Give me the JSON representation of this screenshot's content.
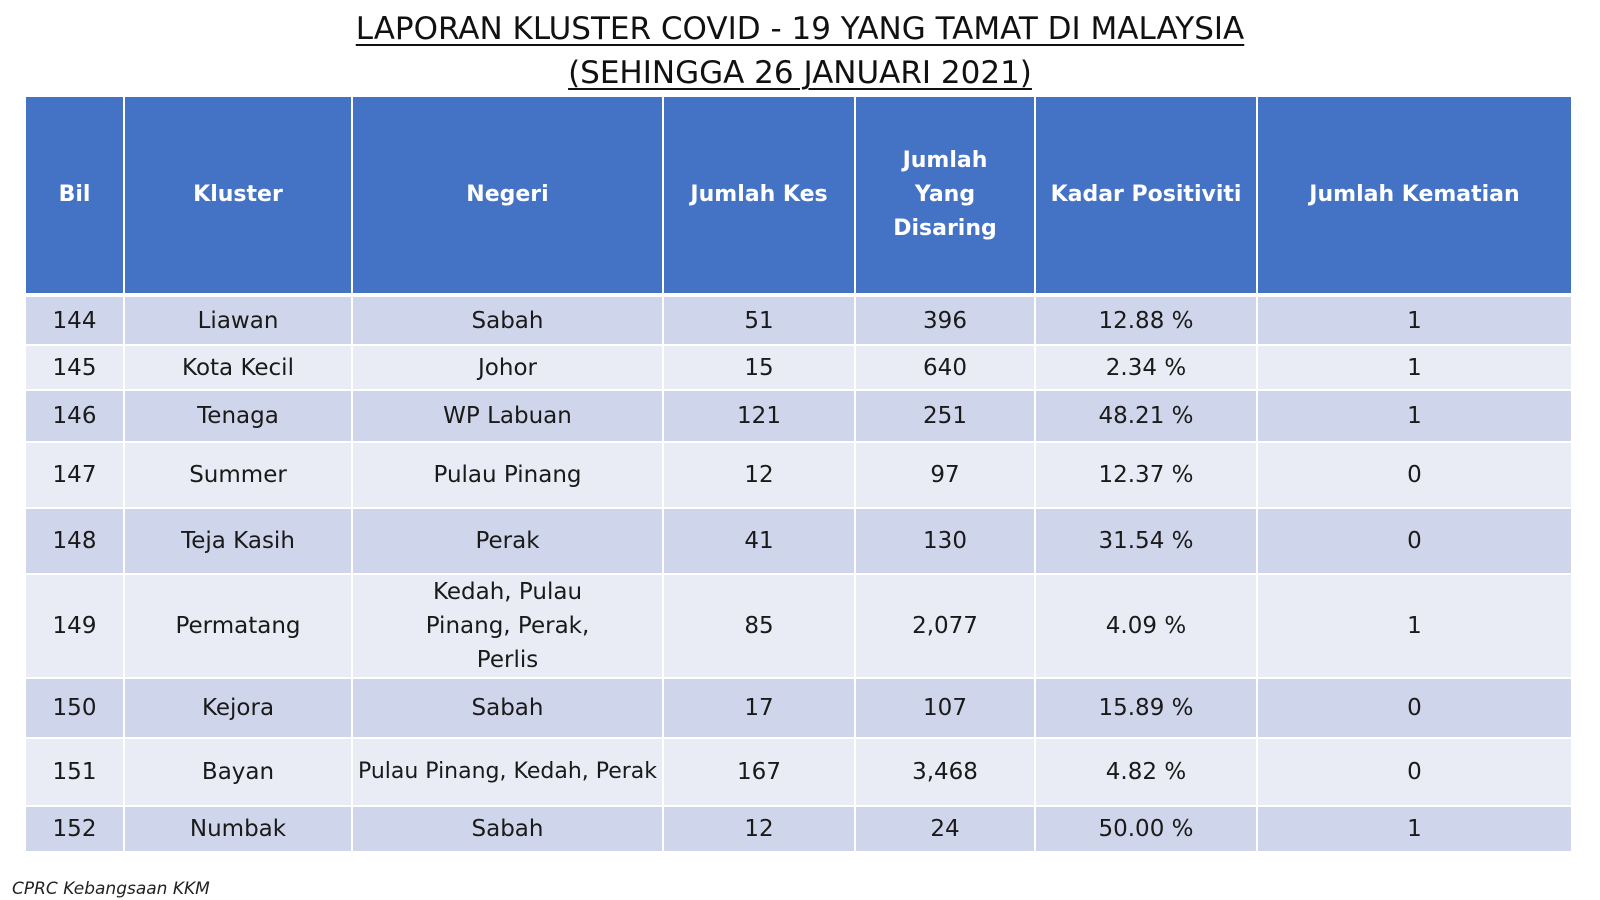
{
  "title": {
    "line1": "LAPORAN KLUSTER COVID - 19 YANG TAMAT DI MALAYSIA",
    "line2": "(SEHINGGA 26 JANUARI 2021)"
  },
  "table": {
    "headers": {
      "bil": "Bil",
      "kluster": "Kluster",
      "negeri": "Negeri",
      "jumlah_kes": "Jumlah Kes",
      "jumlah_disaring": "Jumlah Yang Disaring",
      "kadar_positiviti": "Kadar Positiviti",
      "jumlah_kematian": "Jumlah Kematian"
    },
    "rows": [
      {
        "bil": "144",
        "kluster": "Liawan",
        "negeri": "Sabah",
        "kes": "51",
        "disaring": "396",
        "positiviti": "12.88 %",
        "kematian": "1"
      },
      {
        "bil": "145",
        "kluster": "Kota Kecil",
        "negeri": "Johor",
        "kes": "15",
        "disaring": "640",
        "positiviti": "2.34 %",
        "kematian": "1"
      },
      {
        "bil": "146",
        "kluster": "Tenaga",
        "negeri": "WP Labuan",
        "kes": "121",
        "disaring": "251",
        "positiviti": "48.21 %",
        "kematian": "1"
      },
      {
        "bil": "147",
        "kluster": "Summer",
        "negeri": "Pulau Pinang",
        "kes": "12",
        "disaring": "97",
        "positiviti": "12.37 %",
        "kematian": "0"
      },
      {
        "bil": "148",
        "kluster": "Teja Kasih",
        "negeri": "Perak",
        "kes": "41",
        "disaring": "130",
        "positiviti": "31.54 %",
        "kematian": "0"
      },
      {
        "bil": "149",
        "kluster": "Permatang",
        "negeri": "Kedah, Pulau Pinang, Perak, Perlis",
        "kes": "85",
        "disaring": "2,077",
        "positiviti": "4.09 %",
        "kematian": "1"
      },
      {
        "bil": "150",
        "kluster": "Kejora",
        "negeri": "Sabah",
        "kes": "17",
        "disaring": "107",
        "positiviti": "15.89 %",
        "kematian": "0"
      },
      {
        "bil": "151",
        "kluster": "Bayan",
        "negeri": "Pulau Pinang, Kedah, Perak",
        "kes": "167",
        "disaring": "3,468",
        "positiviti": "4.82 %",
        "kematian": "0"
      },
      {
        "bil": "152",
        "kluster": "Numbak",
        "negeri": "Sabah",
        "kes": "12",
        "disaring": "24",
        "positiviti": "50.00 %",
        "kematian": "1"
      }
    ]
  },
  "footer": {
    "source": "CPRC Kebangsaan KKM"
  },
  "colors": {
    "header_bg": "#4472c4",
    "row_odd": "#cfd5ea",
    "row_even": "#e9ebf5"
  }
}
